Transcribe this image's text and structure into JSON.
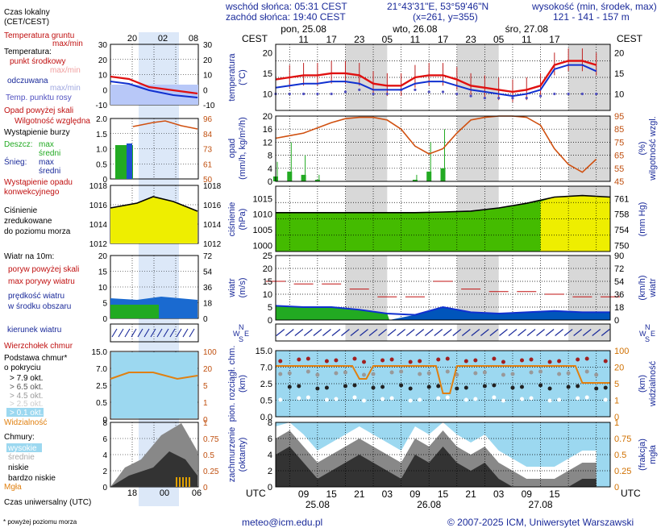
{
  "header": {
    "sunrise": "wschód słońca: 05:31 CEST",
    "sunset": "zachód słońca: 19:40 CEST",
    "coords": "21°43'31\"E, 53°59'46\"N",
    "grid": "(x=261,  y=355)",
    "elev_title": "wysokość (min, środek, max)",
    "elev_values": "121 - 141 - 157 m"
  },
  "footer": {
    "email": "meteo@icm.edu.pl",
    "copyright": "© 2007-2025 ICM, Uniwersytet Warszawski",
    "note": "* powyżej poziomu morza"
  },
  "legend": {
    "local_time": "Czas lokalny",
    "local_time2": "(CET/CEST)",
    "soil_temp": "Temperatura gruntu",
    "soil_temp_sub": "max/min",
    "temp": "Temperatura:",
    "temp_mid": "punkt środkowy",
    "temp_range": "max/min",
    "felt": "odczuwana",
    "felt_range": "max/min",
    "dew": "Temp. punktu rosy",
    "precip_above": "Opad powyżej skali",
    "humidity": "Wilgotność względna",
    "storm": "Wystąpienie burzy",
    "rain": "Deszcz:",
    "rain_max": "max",
    "rain_mid": "średni",
    "snow": "Śnieg:",
    "snow_max": "max",
    "snow_mid": "średni",
    "conv1": "Wystąpienie opadu",
    "conv2": "konwekcyjnego",
    "press1": "Ciśnienie",
    "press2": "zredukowane",
    "press3": "do poziomu morza",
    "wind_title": "Wiatr na 10m:",
    "gust_above": "poryw powyżej skali",
    "gust_max": "max porywy wiatru",
    "wind_speed1": "prędkość wiatru",
    "wind_speed2": "w środku obszaru",
    "wind_dir": "kierunek wiatru",
    "cloud_top": "Wierzchołek chmur",
    "cloud_base1": "Podstawa chmur*",
    "cloud_base2": "o pokryciu",
    "okt": [
      "> 7.9 okt.",
      "> 6.5 okt.",
      "> 4.5 okt.",
      "> 2.5 okt.",
      "> 0.1 okt."
    ],
    "visibility": "Widzialność",
    "clouds": "Chmury:",
    "cl_high": "wysokie",
    "cl_mid": "średnie",
    "cl_low": "niskie",
    "cl_vlow": "bardzo niskie",
    "fog": "Mgła",
    "utc_time": "Czas uniwersalny (UTC)"
  },
  "mini_axis": {
    "top_ticks": [
      "20",
      "02",
      "08"
    ],
    "bottom_ticks": [
      "18",
      "00",
      "06"
    ],
    "temp_left": [
      "30",
      "20",
      "10",
      "0",
      "-10"
    ],
    "temp_right": [
      "30",
      "20",
      "10",
      "0",
      "-10"
    ],
    "precip_left": [
      "2.0",
      "1.5",
      "1.0",
      "0.5",
      "0"
    ],
    "precip_right": [
      "96",
      "84",
      "73",
      "61",
      "50"
    ],
    "press_left": [
      "1018",
      "1016",
      "1014",
      "1012"
    ],
    "press_right": [
      "1018",
      "1016",
      "1014",
      "1012"
    ],
    "wind_left": [
      "20",
      "15",
      "10",
      "5",
      "0"
    ],
    "wind_right": [
      "72",
      "54",
      "36",
      "18",
      "0"
    ],
    "cloud_left": [
      "15.0",
      "7.0",
      "2.5",
      "0.5",
      "0"
    ],
    "cloud_right": [
      "100",
      "20",
      "5",
      "1",
      "0"
    ],
    "cl_left": [
      "8",
      "6",
      "4",
      "2",
      "0"
    ],
    "cl_right": [
      "1",
      "0.75",
      "0.5",
      "0.25",
      "0"
    ]
  },
  "main_axis": {
    "cest_label": "CEST",
    "utc_label": "UTC",
    "days_top": [
      "pon, 25.08",
      "wto, 26.08",
      "śro, 27.08"
    ],
    "hours_top": [
      "11",
      "17",
      "23",
      "05",
      "11",
      "17",
      "23",
      "05",
      "11",
      "17"
    ],
    "hours_bottom": [
      "09",
      "15",
      "21",
      "03",
      "09",
      "15",
      "21",
      "03",
      "09",
      "15"
    ],
    "dates_bottom": [
      "25.08",
      "26.08",
      "27.08"
    ],
    "temp_ticks": [
      "20",
      "15",
      "10"
    ],
    "precip_left": [
      "20",
      "16",
      "12",
      "8",
      "4",
      "0"
    ],
    "precip_right": [
      "95",
      "85",
      "75",
      "65",
      "55",
      "45"
    ],
    "press_left": [
      "1015",
      "1010",
      "1005",
      "1000"
    ],
    "press_right": [
      "761",
      "758",
      "754",
      "750"
    ],
    "wind_left": [
      "25",
      "20",
      "15",
      "10",
      "5",
      "0"
    ],
    "wind_right": [
      "90",
      "72",
      "54",
      "36",
      "18",
      "0"
    ],
    "cloud_left": [
      "15.0",
      "7.0",
      "2.5",
      "0.5",
      "0.0"
    ],
    "cloud_right": [
      "100",
      "20",
      "5",
      "1",
      "0"
    ],
    "cl_left": [
      "8",
      "6",
      "4",
      "2",
      "0"
    ],
    "cl_right": [
      "1",
      "0.75",
      "0.5",
      "0.25",
      "0"
    ],
    "dir_labels": [
      "N",
      "W",
      "E",
      "S"
    ]
  },
  "panel_labels": {
    "temp": "temperatura",
    "temp_unit": "(°C)",
    "precip": "opad",
    "precip_unit": "(mm/h, kg/m²/h)",
    "humidity": "wilgotność wzgl.",
    "humidity_unit": "(%)",
    "press": "ciśnienie",
    "press_unit": "(hPa)",
    "press_unit_r": "(mm Hg)",
    "wind": "wiatr",
    "wind_unit": "(m/s)",
    "wind_unit_r": "(km/h)",
    "cloud_base": "pion. rozciągł. chm.",
    "cloud_base_unit": "(km)",
    "visibility": "widzialność",
    "visibility_unit": "(km)",
    "cloud_cover": "zachmurzenie",
    "cloud_cover_unit": "(oktanty)",
    "fog": "mgła",
    "fog_unit": "(frakcja)"
  },
  "colors": {
    "temp": "#e01010",
    "felt": "#1030d0",
    "dew": "#5050c0",
    "humidity": "#d05010",
    "press_fill": "#eeee00",
    "press_fill_low": "#44bb00",
    "wind_fill": "#22aa22",
    "wind_fill_strong": "#0055bb",
    "wind_line": "#1030d0",
    "gust": "#c01010",
    "night": "#d8d8d8",
    "sky": "#9cd8f0",
    "cloud_dark": "#333333",
    "fog": "#e0a000"
  },
  "chart_data": [
    {
      "type": "line",
      "name": "temperature",
      "x_hours_utc": [
        3,
        6,
        9,
        12,
        15,
        18,
        21,
        24,
        27,
        30,
        33,
        36,
        39,
        42,
        45,
        48,
        51,
        54,
        57,
        60,
        63,
        66,
        69,
        72
      ],
      "series": [
        {
          "name": "temperature",
          "values": [
            13.5,
            14,
            14.5,
            14.5,
            15,
            15,
            14.5,
            12.5,
            12,
            12,
            14,
            14.5,
            14.5,
            13.5,
            12,
            11.5,
            11,
            10.5,
            11,
            12,
            17,
            18,
            18,
            17
          ]
        },
        {
          "name": "felt",
          "values": [
            11.5,
            12,
            12.5,
            12.5,
            13,
            13,
            12.5,
            11,
            11,
            11,
            12.5,
            13,
            13,
            12,
            11,
            10.5,
            10,
            9.5,
            10,
            11,
            16,
            17,
            17,
            15.5
          ]
        },
        {
          "name": "dew",
          "values": [
            10,
            10,
            10,
            10,
            10,
            10.5,
            11,
            10,
            10,
            11,
            11,
            10.5,
            10.5,
            10,
            9.5,
            9,
            9,
            9,
            9,
            9.5,
            10,
            10,
            10,
            10
          ]
        }
      ],
      "ylim": [
        6,
        22
      ]
    },
    {
      "type": "line",
      "name": "precipitation",
      "x_hours_utc": [
        3,
        6,
        9,
        12,
        15,
        18,
        21,
        24,
        27,
        30,
        33,
        36,
        39,
        42,
        45,
        48,
        51,
        54,
        57,
        60,
        63,
        66,
        69,
        72
      ],
      "series": [
        {
          "name": "humidity",
          "values": [
            78,
            80,
            82,
            86,
            90,
            93,
            94,
            94,
            92,
            85,
            72,
            66,
            70,
            82,
            92,
            94,
            95,
            95,
            94,
            88,
            70,
            58,
            52,
            62
          ]
        },
        {
          "name": "rain",
          "values": [
            1.5,
            3,
            2,
            0.5,
            0,
            0,
            0,
            0,
            0,
            0,
            0.5,
            3,
            4,
            0,
            0,
            0,
            0,
            0,
            0,
            0,
            0,
            0,
            0,
            0
          ]
        }
      ],
      "ylim": [
        45,
        95
      ]
    },
    {
      "type": "area",
      "name": "pressure",
      "x_hours_utc": [
        3,
        9,
        15,
        21,
        27,
        33,
        39,
        45,
        51,
        57,
        63,
        69,
        75
      ],
      "values": [
        1010.5,
        1010.5,
        1010.5,
        1010.5,
        1010.5,
        1010.5,
        1010.7,
        1011,
        1012,
        1013.5,
        1015.5,
        1016,
        1015.5
      ],
      "ylim": [
        998,
        1019
      ]
    },
    {
      "type": "area",
      "name": "wind",
      "x_hours_utc": [
        3,
        9,
        15,
        21,
        27,
        33,
        39,
        45,
        51,
        57,
        63,
        69,
        75
      ],
      "values": [
        5.5,
        5,
        5,
        4,
        2.5,
        2,
        5,
        3,
        2.5,
        3,
        3.5,
        3,
        3
      ],
      "gusts": [
        15,
        14,
        14,
        12,
        9,
        9,
        15,
        12,
        11,
        11,
        10,
        9,
        9
      ],
      "ylim": [
        0,
        25
      ]
    },
    {
      "type": "area",
      "name": "cloud_cover",
      "x_hours_utc": [
        3,
        6,
        9,
        12,
        15,
        18,
        21,
        24,
        27,
        30,
        33,
        36,
        39,
        42,
        45,
        48,
        51,
        54,
        57,
        60,
        63,
        66,
        69,
        72
      ],
      "values": [
        6,
        7,
        5,
        3,
        4,
        5,
        6,
        5,
        4,
        3,
        6,
        5,
        7,
        5,
        4,
        5,
        3,
        2,
        1,
        1,
        1,
        2,
        3,
        3
      ],
      "ylim": [
        0,
        8
      ]
    }
  ]
}
